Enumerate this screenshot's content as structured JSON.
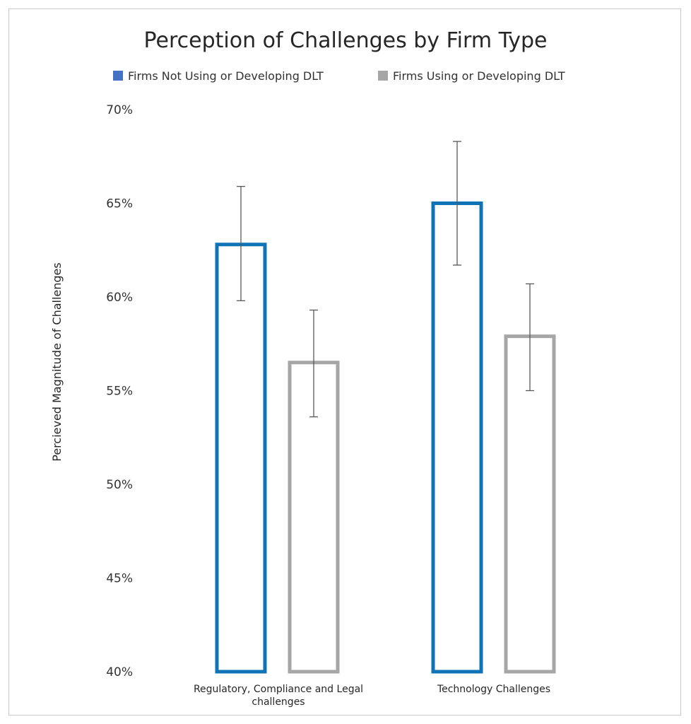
{
  "chart_data": {
    "type": "bar",
    "title": "Perception of Challenges by Firm Type",
    "ylabel": "Percieved Magnitude of Challenges",
    "xlabel": "",
    "categories": [
      "Regulatory, Compliance and Legal challenges",
      "Technology Challenges"
    ],
    "series": [
      {
        "name": "Firms Not Using or Developing DLT",
        "color": "#0f73b6",
        "legend_color": "#4472c4",
        "values": [
          62.8,
          65.0
        ],
        "error_low": [
          59.8,
          61.7
        ],
        "error_high": [
          65.9,
          68.3
        ]
      },
      {
        "name": "Firms Using or Developing DLT",
        "color": "#a6a6a6",
        "legend_color": "#a6a6a6",
        "values": [
          56.5,
          57.9
        ],
        "error_low": [
          53.6,
          55.0
        ],
        "error_high": [
          59.3,
          60.7
        ]
      }
    ],
    "ylim": [
      40,
      70
    ],
    "yticks": [
      "40%",
      "45%",
      "50%",
      "55%",
      "60%",
      "65%",
      "70%"
    ],
    "ytick_values": [
      40,
      45,
      50,
      55,
      60,
      65,
      70
    ],
    "legend_position": "top",
    "grid": false
  }
}
